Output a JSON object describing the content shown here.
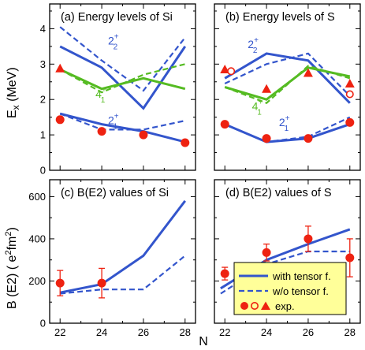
{
  "colors": {
    "blue": "#3355cc",
    "green": "#55bb22",
    "red": "#ee2211",
    "legend_bg": "#ffff99",
    "frame": "#000000"
  },
  "figure": {
    "ylabel_top_main": "E",
    "ylabel_top_sub": "x",
    "ylabel_top_unit": " (MeV)",
    "ylabel_bottom_main": "B (E2) ( e",
    "ylabel_bottom_sup1": "2",
    "ylabel_bottom_mid": "fm",
    "ylabel_bottom_sup2": "2",
    "ylabel_bottom_end": ")",
    "xlabel": "N"
  },
  "legend": {
    "with_tensor": "with tensor f.",
    "wo_tensor": "w/o tensor f.",
    "exp": "exp."
  },
  "chart_data": [
    {
      "type": "line",
      "id": "a",
      "title": "(a) Energy levels of Si",
      "x_ticks": [
        22,
        24,
        26,
        28
      ],
      "ylim": [
        0,
        4.7
      ],
      "y_ticks": [
        0,
        1,
        2,
        3,
        4
      ],
      "annotations": [
        {
          "main": "2",
          "sup": "+",
          "sub": "2",
          "color": "blue",
          "at": [
            24.3,
            3.55
          ]
        },
        {
          "main": "4",
          "sup": "+",
          "sub": "1",
          "color": "green",
          "at": [
            23.7,
            2.05
          ]
        },
        {
          "main": "2",
          "sup": "+",
          "sub": "1",
          "color": "blue",
          "at": [
            24.3,
            1.3
          ]
        }
      ],
      "series": [
        {
          "level": "2+2",
          "style": "with_tensor",
          "color": "blue",
          "x": [
            22,
            24,
            26,
            28
          ],
          "y": [
            3.5,
            2.9,
            1.75,
            3.5
          ]
        },
        {
          "level": "2+2",
          "style": "wo_tensor",
          "color": "blue",
          "x": [
            22,
            24,
            26,
            28
          ],
          "y": [
            4.05,
            3.1,
            2.25,
            3.75
          ]
        },
        {
          "level": "4+1",
          "style": "with_tensor",
          "color": "green",
          "x": [
            22,
            24,
            26,
            28
          ],
          "y": [
            2.85,
            2.3,
            2.6,
            2.3
          ]
        },
        {
          "level": "4+1",
          "style": "wo_tensor",
          "color": "green",
          "x": [
            22,
            24,
            26,
            28
          ],
          "y": [
            2.85,
            2.2,
            2.7,
            3.0
          ]
        },
        {
          "level": "2+1",
          "style": "with_tensor",
          "color": "blue",
          "x": [
            22,
            24,
            26,
            28
          ],
          "y": [
            1.6,
            1.3,
            1.1,
            0.8
          ]
        },
        {
          "level": "2+1",
          "style": "wo_tensor",
          "color": "blue",
          "x": [
            22,
            24,
            26,
            28
          ],
          "y": [
            1.6,
            1.15,
            1.15,
            1.4
          ]
        }
      ],
      "experiment": [
        {
          "marker": "circle",
          "x": [
            22,
            24,
            26,
            28
          ],
          "y": [
            1.43,
            1.1,
            1.0,
            0.78
          ]
        },
        {
          "marker": "triangle",
          "x": [
            22
          ],
          "y": [
            2.88
          ]
        }
      ]
    },
    {
      "type": "line",
      "id": "b",
      "title": "(b) Energy levels of S",
      "x_ticks": [
        22,
        24,
        26,
        28
      ],
      "ylim": [
        0,
        4.7
      ],
      "y_ticks": [
        0,
        1,
        2,
        3,
        4
      ],
      "annotations": [
        {
          "main": "2",
          "sup": "+",
          "sub": "2",
          "color": "blue",
          "at": [
            23.1,
            3.45
          ]
        },
        {
          "main": "4",
          "sup": "+",
          "sub": "1",
          "color": "green",
          "at": [
            23.3,
            1.7
          ]
        },
        {
          "main": "2",
          "sup": "+",
          "sub": "1",
          "color": "blue",
          "at": [
            24.6,
            1.25
          ]
        }
      ],
      "series": [
        {
          "level": "2+2",
          "style": "with_tensor",
          "color": "blue",
          "x": [
            22,
            24,
            26,
            28
          ],
          "y": [
            2.6,
            3.3,
            3.1,
            1.9
          ]
        },
        {
          "level": "2+2",
          "style": "wo_tensor",
          "color": "blue",
          "x": [
            22,
            24,
            26,
            28
          ],
          "y": [
            2.45,
            3.0,
            3.3,
            2.1
          ]
        },
        {
          "level": "4+1",
          "style": "with_tensor",
          "color": "green",
          "x": [
            22,
            24,
            26,
            28
          ],
          "y": [
            2.35,
            2.0,
            2.9,
            2.65
          ]
        },
        {
          "level": "4+1",
          "style": "wo_tensor",
          "color": "green",
          "x": [
            22,
            24,
            26,
            28
          ],
          "y": [
            2.35,
            1.9,
            2.95,
            2.6
          ]
        },
        {
          "level": "2+1",
          "style": "with_tensor",
          "color": "blue",
          "x": [
            22,
            24,
            26,
            28
          ],
          "y": [
            1.3,
            0.8,
            0.9,
            1.3
          ]
        },
        {
          "level": "2+1",
          "style": "wo_tensor",
          "color": "blue",
          "x": [
            22,
            24,
            26,
            28
          ],
          "y": [
            1.3,
            0.8,
            0.95,
            1.5
          ]
        }
      ],
      "experiment": [
        {
          "marker": "circle",
          "x": [
            22,
            24,
            26,
            28
          ],
          "y": [
            1.3,
            0.9,
            0.9,
            1.35
          ]
        },
        {
          "marker": "triangle",
          "x": [
            22,
            24,
            26,
            28
          ],
          "y": [
            2.85,
            2.3,
            2.75,
            2.45
          ]
        },
        {
          "marker": "open-circle",
          "x": [
            22.3,
            28
          ],
          "y": [
            2.8,
            2.15
          ]
        }
      ]
    },
    {
      "type": "line",
      "id": "c",
      "title": "(c) B(E2) values of Si",
      "x_ticks": [
        22,
        24,
        26,
        28
      ],
      "ylim": [
        0,
        680
      ],
      "y_ticks": [
        0,
        200,
        400,
        600
      ],
      "series": [
        {
          "style": "with_tensor",
          "color": "blue",
          "x": [
            22,
            24,
            26,
            28
          ],
          "y": [
            145,
            185,
            320,
            580
          ]
        },
        {
          "style": "wo_tensor",
          "color": "blue",
          "x": [
            22,
            24,
            26,
            28
          ],
          "y": [
            140,
            160,
            160,
            320
          ]
        }
      ],
      "experiment": [
        {
          "marker": "circle",
          "x": [
            22,
            24
          ],
          "y": [
            190,
            190
          ],
          "err": [
            60,
            70
          ]
        }
      ]
    },
    {
      "type": "line",
      "id": "d",
      "title": "(d) B(E2) values of S",
      "x_ticks": [
        22,
        24,
        26,
        28
      ],
      "ylim": [
        0,
        680
      ],
      "y_ticks": [
        0,
        200,
        400,
        600
      ],
      "series": [
        {
          "style": "with_tensor",
          "color": "blue",
          "x": [
            21.8,
            24,
            26,
            28
          ],
          "y": [
            165,
            300,
            375,
            445
          ]
        },
        {
          "style": "wo_tensor",
          "color": "blue",
          "x": [
            21.8,
            24,
            26,
            28
          ],
          "y": [
            140,
            280,
            340,
            340
          ]
        }
      ],
      "experiment": [
        {
          "marker": "circle",
          "x": [
            22,
            24,
            26,
            28
          ],
          "y": [
            235,
            335,
            400,
            310
          ],
          "err": [
            30,
            40,
            60,
            90
          ]
        }
      ]
    }
  ]
}
